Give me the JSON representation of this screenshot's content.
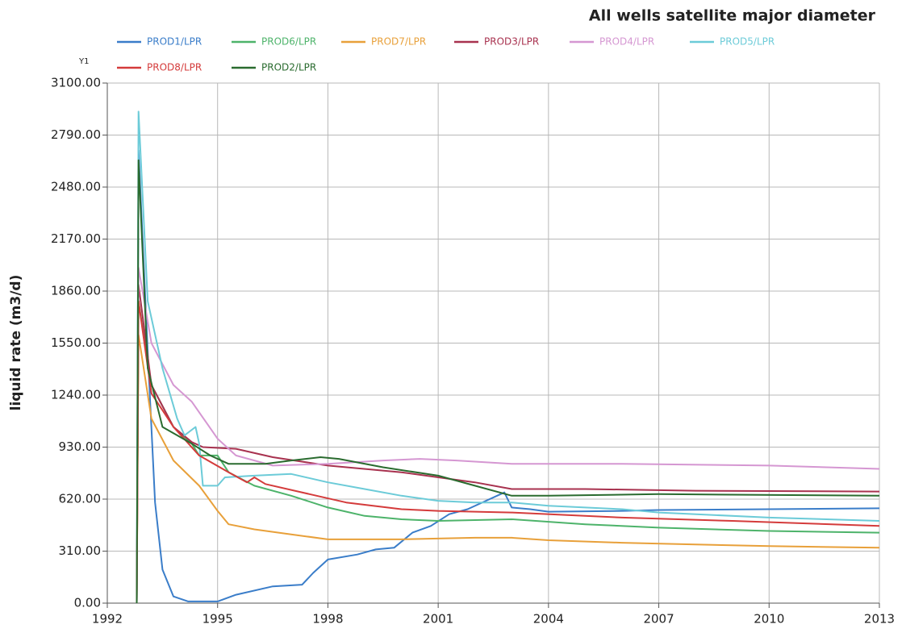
{
  "chart_data": {
    "type": "line",
    "title": "All wells satellite major diameter",
    "axis_tag": "Y1",
    "ylabel": "liquid rate (m3/d)",
    "xlim": [
      1992,
      2013
    ],
    "xticks": [
      1992,
      1995,
      1998,
      2001,
      2004,
      2007,
      2010,
      2013
    ],
    "ylim": [
      0,
      3100
    ],
    "yticks": [
      {
        "value": 0,
        "label": "0.00"
      },
      {
        "value": 310,
        "label": "310.00"
      },
      {
        "value": 620,
        "label": "620.00"
      },
      {
        "value": 930,
        "label": "930.00"
      },
      {
        "value": 1240,
        "label": "1240.00"
      },
      {
        "value": 1550,
        "label": "1550.00"
      },
      {
        "value": 1860,
        "label": "1860.00"
      },
      {
        "value": 2170,
        "label": "2170.00"
      },
      {
        "value": 2480,
        "label": "2480.00"
      },
      {
        "value": 2790,
        "label": "2790.00"
      },
      {
        "value": 3100,
        "label": "3100.00"
      }
    ],
    "grid": true,
    "series": [
      {
        "name": "PROD1/LPR",
        "color": "#3a7dc9",
        "x": [
          1992.8,
          1992.85,
          1993.1,
          1993.3,
          1993.5,
          1993.8,
          1994.2,
          1995,
          1995.5,
          1996.5,
          1997.3,
          1997.6,
          1998,
          1998.8,
          1999.3,
          1999.8,
          2000.3,
          2000.8,
          2001.3,
          2001.8,
          2002.8,
          2003,
          2003.5,
          2004,
          2006,
          2007,
          2010,
          2013
        ],
        "values": [
          0,
          2700,
          1500,
          600,
          200,
          40,
          10,
          10,
          50,
          100,
          110,
          180,
          260,
          290,
          320,
          330,
          420,
          460,
          530,
          560,
          660,
          570,
          560,
          545,
          550,
          555,
          560,
          565
        ]
      },
      {
        "name": "PROD6/LPR",
        "color": "#4db36a",
        "x": [
          1992.8,
          1992.85,
          1993.2,
          1993.8,
          1994.3,
          1994.5,
          1995,
          1995.3,
          1996,
          1997,
          1998,
          1999,
          2000,
          2001,
          2003,
          2005,
          2007,
          2010,
          2013
        ],
        "values": [
          0,
          1800,
          1300,
          1050,
          950,
          880,
          880,
          780,
          700,
          640,
          570,
          520,
          500,
          490,
          500,
          470,
          450,
          430,
          420
        ]
      },
      {
        "name": "PROD7/LPR",
        "color": "#e8a03a",
        "x": [
          1992.8,
          1992.85,
          1993.2,
          1993.8,
          1994.5,
          1995,
          1995.3,
          1996,
          1997,
          1998,
          2000,
          2002,
          2003,
          2004,
          2006,
          2008,
          2010,
          2013
        ],
        "values": [
          0,
          1600,
          1100,
          850,
          700,
          550,
          470,
          440,
          410,
          380,
          380,
          390,
          390,
          375,
          360,
          350,
          340,
          330
        ]
      },
      {
        "name": "PROD3/LPR",
        "color": "#a8324f",
        "x": [
          1992.8,
          1992.85,
          1993.2,
          1993.8,
          1994.3,
          1994.6,
          1995.5,
          1996.5,
          1998,
          2000,
          2002,
          2003,
          2005,
          2008,
          2013
        ],
        "values": [
          0,
          1900,
          1300,
          1050,
          960,
          930,
          920,
          870,
          820,
          780,
          720,
          680,
          680,
          670,
          665
        ]
      },
      {
        "name": "PROD4/LPR",
        "color": "#d597d2",
        "x": [
          1992.8,
          1992.85,
          1993.2,
          1993.8,
          1994.3,
          1995,
          1995.5,
          1996.5,
          1998,
          1999.5,
          2000.5,
          2001.5,
          2003,
          2006,
          2010,
          2013
        ],
        "values": [
          0,
          2000,
          1550,
          1300,
          1200,
          980,
          880,
          820,
          830,
          850,
          860,
          850,
          830,
          830,
          820,
          800
        ]
      },
      {
        "name": "PROD5/LPR",
        "color": "#6ccbd8",
        "x": [
          1992.8,
          1992.85,
          1993.1,
          1993.5,
          1993.9,
          1994.1,
          1994.4,
          1994.5,
          1994.6,
          1995,
          1995.2,
          1996,
          1997,
          1998,
          1999,
          2000,
          2001,
          2002,
          2003,
          2004,
          2006,
          2007,
          2010,
          2013
        ],
        "values": [
          0,
          2930,
          1800,
          1400,
          1100,
          1000,
          1050,
          950,
          700,
          700,
          750,
          760,
          770,
          720,
          680,
          640,
          610,
          600,
          600,
          580,
          560,
          540,
          510,
          490
        ]
      },
      {
        "name": "PROD8/LPR",
        "color": "#d43b3b",
        "x": [
          1992.8,
          1992.85,
          1993.2,
          1993.8,
          1994.5,
          1995.3,
          1995.8,
          1996,
          1996.3,
          1997.5,
          1998.5,
          2000,
          2001,
          2003,
          2006,
          2009,
          2013
        ],
        "values": [
          0,
          1800,
          1250,
          1050,
          880,
          780,
          720,
          750,
          710,
          650,
          600,
          560,
          550,
          540,
          510,
          490,
          460
        ]
      },
      {
        "name": "PROD2/LPR",
        "color": "#2a6b2f",
        "x": [
          1992.8,
          1992.85,
          1993.1,
          1993.5,
          1994.3,
          1994.8,
          1995.3,
          1996.3,
          1997,
          1997.8,
          1998.3,
          1999.5,
          2001,
          2002,
          2003,
          2004,
          2007,
          2013
        ],
        "values": [
          0,
          2640,
          1400,
          1050,
          950,
          880,
          830,
          830,
          850,
          870,
          860,
          810,
          760,
          700,
          640,
          640,
          650,
          640
        ]
      }
    ]
  }
}
